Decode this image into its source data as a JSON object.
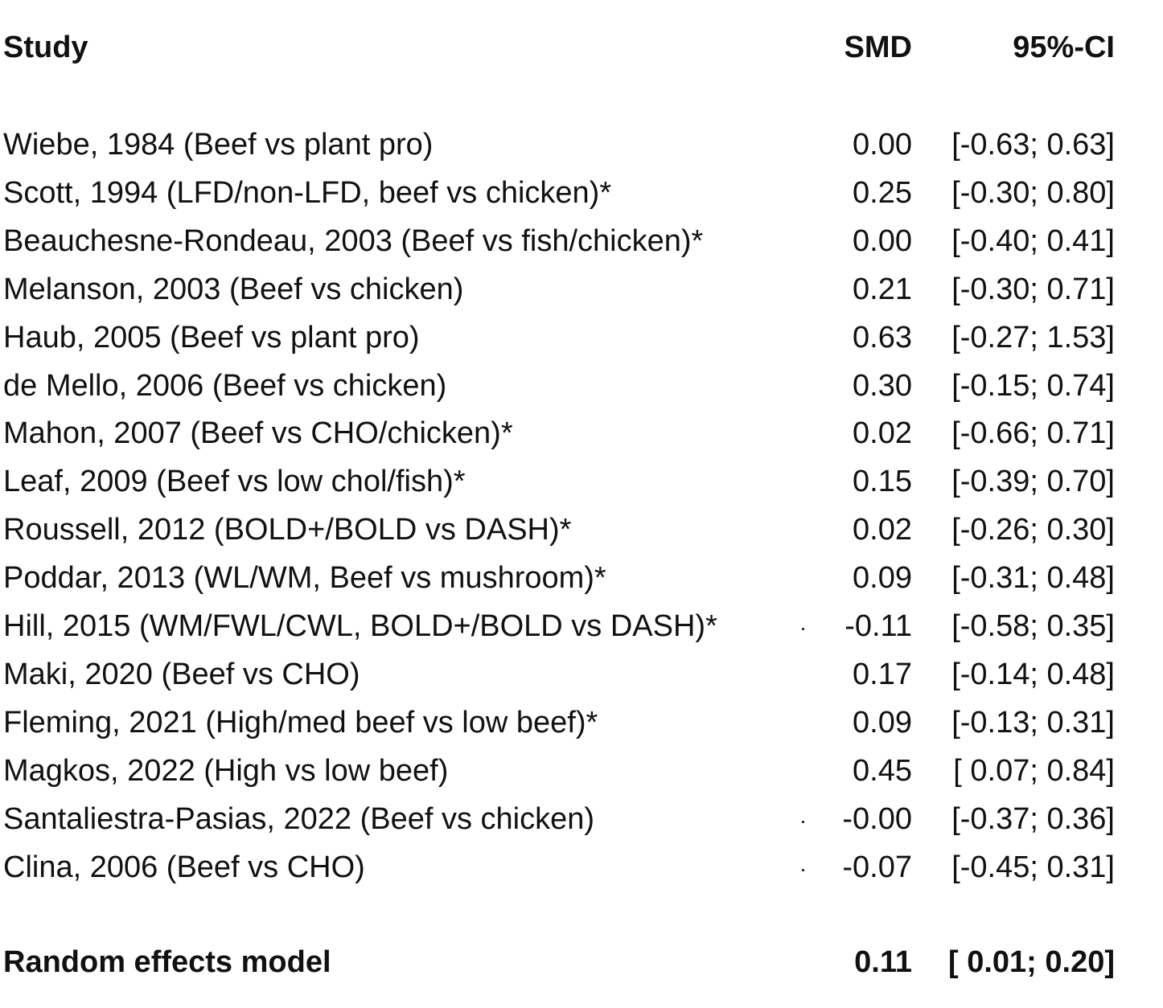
{
  "chart_data": {
    "type": "table",
    "columns": [
      "Study",
      "SMD",
      "95%-CI"
    ],
    "studies": [
      {
        "study": "Wiebe, 1984 (Beef vs plant pro)",
        "smd": "0.00",
        "ci": "[-0.63; 0.63]"
      },
      {
        "study": "Scott, 1994 (LFD/non-LFD, beef vs chicken)*",
        "smd": "0.25",
        "ci": "[-0.30; 0.80]"
      },
      {
        "study": "Beauchesne-Rondeau, 2003 (Beef vs fish/chicken)*",
        "smd": "0.00",
        "ci": "[-0.40; 0.41]"
      },
      {
        "study": "Melanson, 2003 (Beef vs chicken)",
        "smd": "0.21",
        "ci": "[-0.30; 0.71]"
      },
      {
        "study": "Haub, 2005 (Beef vs plant pro)",
        "smd": "0.63",
        "ci": "[-0.27; 1.53]"
      },
      {
        "study": "de Mello, 2006 (Beef vs chicken)",
        "smd": "0.30",
        "ci": "[-0.15; 0.74]"
      },
      {
        "study": "Mahon, 2007 (Beef vs CHO/chicken)*",
        "smd": "0.02",
        "ci": "[-0.66; 0.71]"
      },
      {
        "study": "Leaf, 2009 (Beef vs low chol/fish)*",
        "smd": "0.15",
        "ci": "[-0.39; 0.70]"
      },
      {
        "study": "Roussell, 2012 (BOLD+/BOLD vs DASH)*",
        "smd": "0.02",
        "ci": "[-0.26; 0.30]"
      },
      {
        "study": "Poddar, 2013 (WL/WM, Beef vs mushroom)*",
        "smd": "0.09",
        "ci": "[-0.31; 0.48]"
      },
      {
        "study": "Hill, 2015 (WM/FWL/CWL, BOLD+/BOLD vs DASH)*",
        "smd": "-0.11",
        "ci": "[-0.58; 0.35]"
      },
      {
        "study": "Maki, 2020 (Beef vs CHO)",
        "smd": "0.17",
        "ci": "[-0.14; 0.48]"
      },
      {
        "study": "Fleming, 2021 (High/med beef vs low beef)*",
        "smd": "0.09",
        "ci": "[-0.13; 0.31]"
      },
      {
        "study": "Magkos, 2022 (High vs low beef)",
        "smd": "0.45",
        "ci": "[ 0.07; 0.84]"
      },
      {
        "study": "Santaliestra-Pasias, 2022 (Beef vs chicken)",
        "smd": "-0.00",
        "ci": "[-0.37; 0.36]"
      },
      {
        "study": "Clina, 2006 (Beef vs CHO)",
        "smd": "-0.07",
        "ci": "[-0.45; 0.31]"
      }
    ],
    "summary": {
      "study": "Random effects model",
      "smd": "0.11",
      "ci": "[ 0.01; 0.20]"
    }
  }
}
